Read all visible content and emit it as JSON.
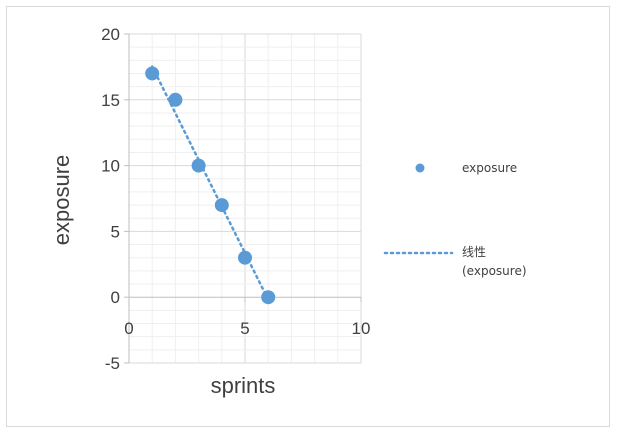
{
  "chart_data": {
    "type": "scatter",
    "xlabel": "sprints",
    "ylabel": "exposure",
    "xlim": [
      0,
      10
    ],
    "ylim": [
      -5,
      20
    ],
    "x_ticks": [
      "0",
      "5",
      "10"
    ],
    "y_ticks": [
      "-5",
      "0",
      "5",
      "10",
      "15",
      "20"
    ],
    "grid": true,
    "legend_position": "right",
    "series": [
      {
        "name": "exposure",
        "kind": "points",
        "color": "#5b9bd5",
        "x": [
          1,
          2,
          3,
          4,
          5,
          6
        ],
        "y": [
          17,
          15,
          10,
          7,
          3,
          0
        ]
      }
    ],
    "trendline": {
      "type": "linear",
      "style": "dotted",
      "color": "#5b9bd5",
      "label_line1": "线性",
      "label_line2": "(exposure)"
    }
  }
}
